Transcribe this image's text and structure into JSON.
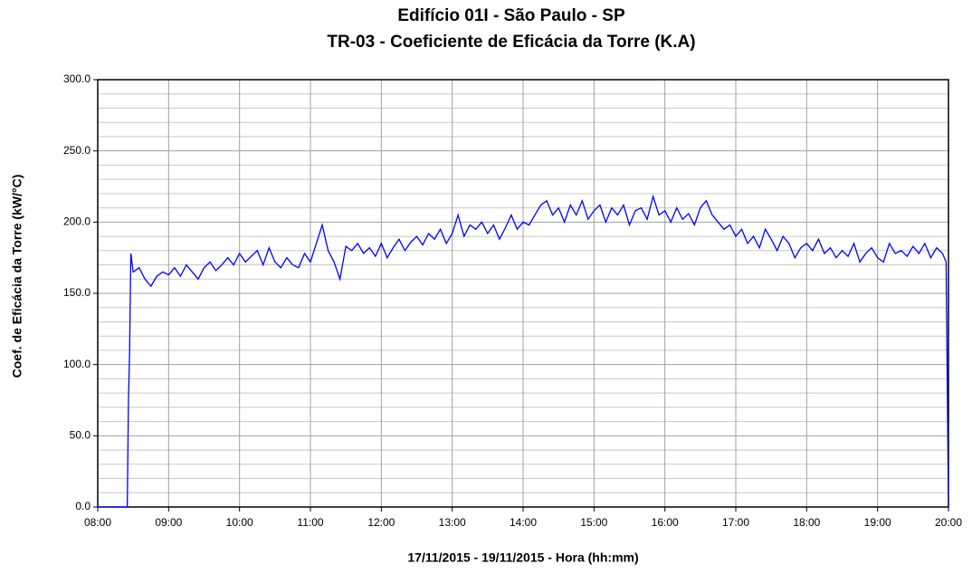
{
  "chart_data": {
    "type": "line",
    "title": "Edifício 01I - São Paulo - SP",
    "subtitle": "TR-03 - Coeficiente de Eficácia da Torre (K.A)",
    "x_label": "17/11/2015 - 19/11/2015 - Hora (hh:mm)",
    "y_label": "Coef. de Eficácia da Torre (kW/°C)",
    "xlim": [
      "08:00",
      "20:00"
    ],
    "xticks": [
      "08:00",
      "09:00",
      "10:00",
      "11:00",
      "12:00",
      "13:00",
      "14:00",
      "15:00",
      "16:00",
      "17:00",
      "18:00",
      "19:00",
      "20:00"
    ],
    "ylim": [
      0,
      300
    ],
    "yticks": [
      {
        "value": 0,
        "label": "0.0"
      },
      {
        "value": 50,
        "label": "50.0"
      },
      {
        "value": 100,
        "label": "100.0"
      },
      {
        "value": 150,
        "label": "150.0"
      },
      {
        "value": 200,
        "label": "200.0"
      },
      {
        "value": 250,
        "label": "250.0"
      },
      {
        "value": 300,
        "label": "300.0"
      }
    ],
    "yminor": [
      10,
      20,
      30,
      40,
      60,
      70,
      80,
      90,
      110,
      120,
      130,
      140,
      160,
      170,
      180,
      190,
      210,
      220,
      230,
      240,
      260,
      270,
      280,
      290
    ],
    "grid": true,
    "series": [
      {
        "color": "#0000ff",
        "x": [
          "08:00",
          "08:25",
          "08:26",
          "08:27",
          "08:28",
          "08:30",
          "08:35",
          "08:40",
          "08:45",
          "08:50",
          "08:55",
          "09:00",
          "09:05",
          "09:10",
          "09:15",
          "09:20",
          "09:25",
          "09:30",
          "09:35",
          "09:40",
          "09:45",
          "09:50",
          "09:55",
          "10:00",
          "10:05",
          "10:10",
          "10:15",
          "10:20",
          "10:25",
          "10:30",
          "10:35",
          "10:40",
          "10:45",
          "10:50",
          "10:55",
          "11:00",
          "11:05",
          "11:10",
          "11:15",
          "11:20",
          "11:25",
          "11:30",
          "11:35",
          "11:40",
          "11:45",
          "11:50",
          "11:55",
          "12:00",
          "12:05",
          "12:10",
          "12:15",
          "12:20",
          "12:25",
          "12:30",
          "12:35",
          "12:40",
          "12:45",
          "12:50",
          "12:55",
          "13:00",
          "13:05",
          "13:10",
          "13:15",
          "13:20",
          "13:25",
          "13:30",
          "13:35",
          "13:40",
          "13:45",
          "13:50",
          "13:55",
          "14:00",
          "14:05",
          "14:10",
          "14:15",
          "14:20",
          "14:25",
          "14:30",
          "14:35",
          "14:40",
          "14:45",
          "14:50",
          "14:55",
          "15:00",
          "15:05",
          "15:10",
          "15:15",
          "15:20",
          "15:25",
          "15:30",
          "15:35",
          "15:40",
          "15:45",
          "15:50",
          "15:55",
          "16:00",
          "16:05",
          "16:10",
          "16:15",
          "16:20",
          "16:25",
          "16:30",
          "16:35",
          "16:40",
          "16:45",
          "16:50",
          "16:55",
          "17:00",
          "17:05",
          "17:10",
          "17:15",
          "17:20",
          "17:25",
          "17:30",
          "17:35",
          "17:40",
          "17:45",
          "17:50",
          "17:55",
          "18:00",
          "18:05",
          "18:10",
          "18:15",
          "18:20",
          "18:25",
          "18:30",
          "18:35",
          "18:40",
          "18:45",
          "18:50",
          "18:55",
          "19:00",
          "19:05",
          "19:10",
          "19:15",
          "19:20",
          "19:25",
          "19:30",
          "19:35",
          "19:40",
          "19:45",
          "19:50",
          "19:55",
          "19:58",
          "20:00"
        ],
        "values": [
          0,
          0,
          75,
          110,
          178,
          165,
          168,
          160,
          155,
          162,
          165,
          163,
          168,
          162,
          170,
          165,
          160,
          168,
          172,
          166,
          170,
          175,
          170,
          178,
          172,
          176,
          180,
          170,
          182,
          172,
          168,
          175,
          170,
          168,
          178,
          172,
          185,
          198,
          180,
          172,
          160,
          183,
          180,
          185,
          178,
          182,
          176,
          185,
          175,
          182,
          188,
          180,
          186,
          190,
          184,
          192,
          188,
          195,
          185,
          192,
          205,
          190,
          198,
          195,
          200,
          192,
          198,
          188,
          196,
          205,
          195,
          200,
          198,
          205,
          212,
          215,
          205,
          210,
          200,
          212,
          205,
          215,
          202,
          208,
          212,
          200,
          210,
          205,
          212,
          198,
          208,
          210,
          202,
          218,
          205,
          208,
          200,
          210,
          202,
          206,
          198,
          210,
          215,
          205,
          200,
          195,
          198,
          190,
          195,
          185,
          190,
          182,
          195,
          188,
          180,
          190,
          185,
          175,
          182,
          185,
          180,
          188,
          178,
          182,
          175,
          180,
          176,
          185,
          172,
          178,
          182,
          175,
          172,
          185,
          178,
          180,
          176,
          183,
          178,
          185,
          175,
          182,
          178,
          172,
          0
        ]
      }
    ]
  }
}
